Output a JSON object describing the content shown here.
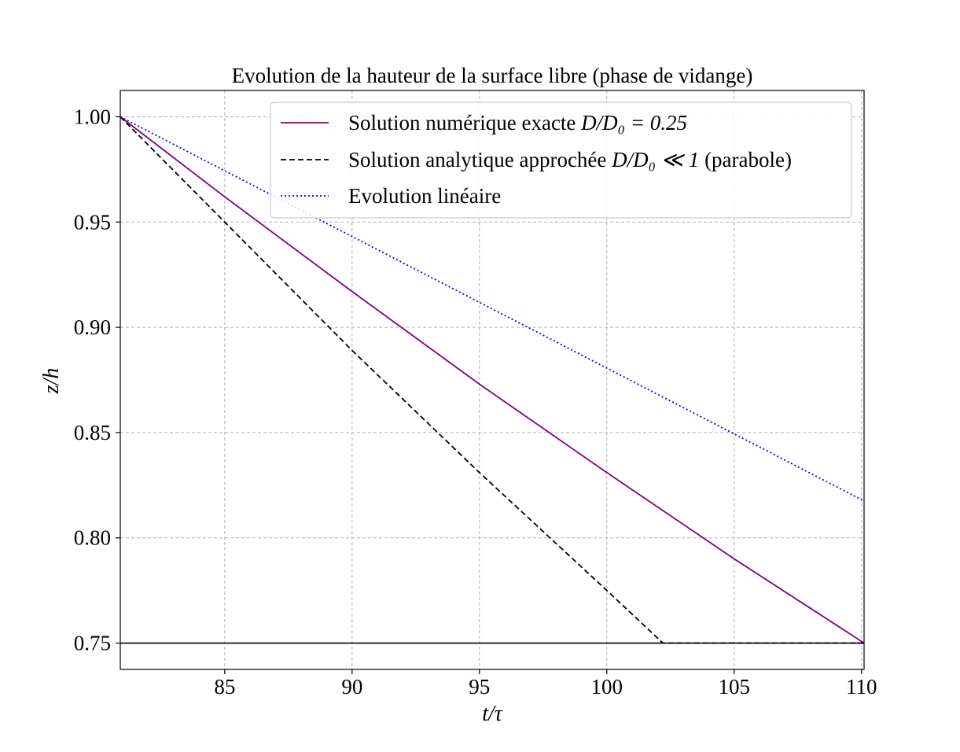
{
  "chart_data": {
    "type": "line",
    "title": "Evolution de la hauteur de la surface libre (phase de vidange)",
    "xlabel": "t/τ",
    "ylabel": "z/h",
    "xlim": [
      80.9,
      110.1
    ],
    "ylim": [
      0.7375,
      1.0125
    ],
    "xticks": [
      85,
      90,
      95,
      100,
      105,
      110
    ],
    "yticks": [
      0.75,
      0.8,
      0.85,
      0.9,
      0.95,
      1.0
    ],
    "xtick_labels": [
      "85",
      "90",
      "95",
      "100",
      "105",
      "110"
    ],
    "ytick_labels": [
      "0.75",
      "0.80",
      "0.85",
      "0.90",
      "0.95",
      "1.00"
    ],
    "grid": true,
    "legend_position": "top-right",
    "reference_line": {
      "y": 0.75,
      "color": "#000000"
    },
    "series": [
      {
        "name": "Solution numérique exacte D/D0 = 0.25",
        "legend_label": "Solution numérique exacte ",
        "legend_math": "D/D₀ = 0.25",
        "color": "#800080",
        "style": "solid",
        "x": [
          80.9,
          85,
          90,
          95,
          100,
          105,
          110.1
        ],
        "y": [
          1.0,
          0.962,
          0.917,
          0.873,
          0.831,
          0.79,
          0.75
        ]
      },
      {
        "name": "Solution analytique approchée D/D0 ≪ 1 (parabole)",
        "legend_label": "Solution analytique approchée ",
        "legend_math": "D/D₀ ≪ 1",
        "legend_suffix": " (parabole)",
        "color": "#000000",
        "style": "dashed",
        "x": [
          80.9,
          85,
          90,
          95,
          100,
          102.2,
          110.1
        ],
        "y": [
          1.0,
          0.95,
          0.889,
          0.831,
          0.775,
          0.75,
          0.75
        ]
      },
      {
        "name": "Evolution linéaire",
        "legend_label": "Evolution linéaire",
        "legend_math": "",
        "color": "#0000ff",
        "style": "dotted",
        "x": [
          80.9,
          110.1
        ],
        "y": [
          1.0,
          0.8175
        ]
      }
    ]
  }
}
